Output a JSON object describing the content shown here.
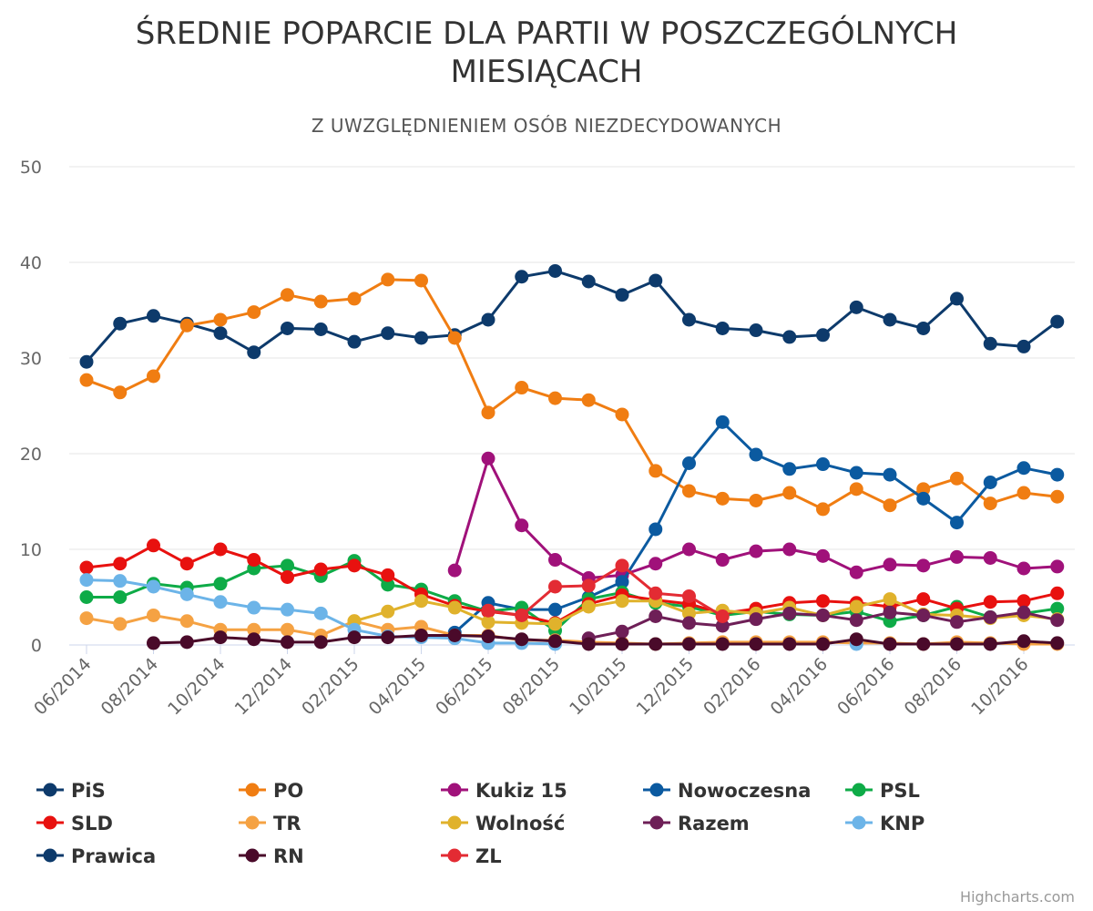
{
  "chart_data": {
    "type": "line",
    "title_lines": [
      "ŚREDNIE POPARCIE DLA PARTII W POSZCZEGÓLNYCH",
      "MIESIĄCACH"
    ],
    "subtitle": "Z UWZGLĘDNIENIEM OSÓB NIEZDECYDOWANYCH",
    "credits": "Highcharts.com",
    "ylim": [
      0,
      50
    ],
    "yticks": [
      0,
      10,
      20,
      30,
      40,
      50
    ],
    "grid": true,
    "legend_position": "bottom",
    "categories": [
      "06/2014",
      "07/2014",
      "08/2014",
      "09/2014",
      "10/2014",
      "11/2014",
      "12/2014",
      "01/2015",
      "02/2015",
      "03/2015",
      "04/2015",
      "05/2015",
      "06/2015",
      "07/2015",
      "08/2015",
      "09/2015",
      "10/2015",
      "11/2015",
      "12/2015",
      "01/2016",
      "02/2016",
      "03/2016",
      "04/2016",
      "05/2016",
      "06/2016",
      "07/2016",
      "08/2016",
      "09/2016",
      "10/2016",
      "11/2016"
    ],
    "xtick_labels": [
      "06/2014",
      "08/2014",
      "10/2014",
      "12/2014",
      "02/2015",
      "04/2015",
      "06/2015",
      "08/2015",
      "10/2015",
      "12/2015",
      "02/2016",
      "04/2016",
      "06/2016",
      "08/2016",
      "10/2016"
    ],
    "series": [
      {
        "name": "PiS",
        "color": "#0d3a6b",
        "values": [
          29.6,
          33.6,
          34.4,
          33.6,
          32.6,
          30.6,
          33.1,
          33.0,
          31.7,
          32.6,
          32.1,
          32.4,
          34.0,
          38.5,
          39.1,
          38.0,
          36.6,
          38.1,
          34.0,
          33.1,
          32.9,
          32.2,
          32.4,
          35.3,
          34.0,
          33.1,
          36.2,
          31.5,
          31.2,
          33.8
        ]
      },
      {
        "name": "PO",
        "color": "#f07d12",
        "values": [
          27.7,
          26.4,
          28.1,
          33.4,
          34.0,
          34.8,
          36.6,
          35.9,
          36.2,
          38.2,
          38.1,
          32.1,
          24.3,
          26.9,
          25.8,
          25.6,
          24.1,
          18.2,
          16.1,
          15.3,
          15.1,
          15.9,
          14.2,
          16.3,
          14.6,
          16.3,
          17.4,
          14.8,
          15.9,
          15.5
        ]
      },
      {
        "name": "Kukiz 15",
        "color": "#a0117a",
        "values": [
          null,
          null,
          null,
          null,
          null,
          null,
          null,
          null,
          null,
          null,
          null,
          7.8,
          19.5,
          12.5,
          8.9,
          7.0,
          7.3,
          8.5,
          10.0,
          8.9,
          9.8,
          10.0,
          9.3,
          7.6,
          8.4,
          8.3,
          9.2,
          9.1,
          8.0,
          8.2
        ]
      },
      {
        "name": "Nowoczesna",
        "color": "#0b5aa0",
        "values": [
          null,
          null,
          null,
          null,
          null,
          null,
          null,
          null,
          null,
          null,
          null,
          1.3,
          4.4,
          3.7,
          3.7,
          5.0,
          6.6,
          12.1,
          19.0,
          23.3,
          19.9,
          18.4,
          18.9,
          18.0,
          17.8,
          15.3,
          12.8,
          17.0,
          18.5,
          17.8
        ]
      },
      {
        "name": "PSL",
        "color": "#0eab47",
        "values": [
          5.0,
          5.0,
          6.4,
          6.0,
          6.4,
          8.0,
          8.3,
          7.2,
          8.8,
          6.3,
          5.8,
          4.6,
          3.5,
          3.9,
          1.5,
          4.8,
          5.5,
          4.4,
          4.0,
          3.1,
          3.5,
          3.2,
          3.1,
          3.5,
          2.5,
          3.1,
          4.0,
          2.9,
          3.3,
          3.8
        ]
      },
      {
        "name": "SLD",
        "color": "#e8110f",
        "values": [
          8.1,
          8.5,
          10.4,
          8.5,
          10.0,
          8.9,
          7.1,
          7.9,
          8.3,
          7.3,
          5.3,
          4.1,
          3.5,
          3.1,
          2.3,
          4.3,
          5.2,
          4.7,
          4.3,
          3.3,
          3.8,
          4.4,
          4.6,
          4.4,
          4.0,
          4.8,
          3.8,
          4.5,
          4.6,
          5.4
        ]
      },
      {
        "name": "TR",
        "color": "#f5a243",
        "values": [
          2.8,
          2.2,
          3.1,
          2.5,
          1.6,
          1.6,
          1.6,
          1.0,
          2.5,
          1.6,
          1.9,
          1.0,
          1.0,
          0.5,
          0.5,
          0.3,
          0.2,
          0.1,
          0.2,
          0.3,
          0.3,
          0.3,
          0.3,
          0.2,
          0.2,
          0.1,
          0.3,
          0.2,
          0.1,
          0.1
        ]
      },
      {
        "name": "Wolność",
        "color": "#e0b22c",
        "values": [
          null,
          null,
          null,
          null,
          null,
          null,
          null,
          null,
          2.5,
          3.5,
          4.6,
          3.9,
          2.4,
          2.3,
          2.2,
          4.0,
          4.6,
          4.6,
          3.3,
          3.6,
          3.3,
          3.9,
          3.1,
          4.0,
          4.8,
          3.2,
          3.1,
          2.8,
          3.1,
          2.7
        ]
      },
      {
        "name": "Razem",
        "color": "#6e1f57",
        "values": [
          null,
          null,
          null,
          null,
          null,
          null,
          null,
          null,
          null,
          null,
          null,
          null,
          null,
          null,
          null,
          0.7,
          1.4,
          3.0,
          2.3,
          2.0,
          2.7,
          3.3,
          3.1,
          2.6,
          3.4,
          3.1,
          2.4,
          2.9,
          3.4,
          2.6
        ]
      },
      {
        "name": "KNP",
        "color": "#6cb4e8",
        "values": [
          6.8,
          6.7,
          6.1,
          5.3,
          4.5,
          3.9,
          3.7,
          3.3,
          1.6,
          0.9,
          0.8,
          0.7,
          0.2,
          0.2,
          0.1,
          null,
          null,
          null,
          null,
          null,
          null,
          null,
          null,
          0.1,
          null,
          null,
          null,
          null,
          null,
          null
        ]
      },
      {
        "name": "Prawica",
        "color": "#0d3a6b",
        "values": [
          null,
          null,
          null,
          null,
          null,
          null,
          null,
          null,
          null,
          null,
          null,
          null,
          null,
          null,
          null,
          null,
          null,
          null,
          null,
          null,
          null,
          null,
          null,
          null,
          null,
          null,
          null,
          null,
          null,
          null
        ]
      },
      {
        "name": "RN",
        "color": "#4a0a2a",
        "values": [
          null,
          null,
          0.2,
          0.3,
          0.8,
          0.6,
          0.3,
          0.3,
          0.8,
          0.8,
          1.0,
          1.0,
          0.9,
          0.6,
          0.4,
          0.1,
          0.1,
          0.1,
          0.1,
          0.1,
          0.1,
          0.1,
          0.1,
          0.6,
          0.1,
          0.1,
          0.1,
          0.1,
          0.4,
          0.2
        ]
      },
      {
        "name": "ZL",
        "color": "#e32b33",
        "values": [
          null,
          null,
          null,
          null,
          null,
          null,
          null,
          null,
          null,
          null,
          null,
          null,
          3.6,
          3.1,
          6.1,
          6.2,
          8.3,
          5.4,
          5.1,
          3.0,
          null,
          null,
          null,
          null,
          null,
          null,
          null,
          null,
          null,
          null
        ]
      }
    ]
  }
}
